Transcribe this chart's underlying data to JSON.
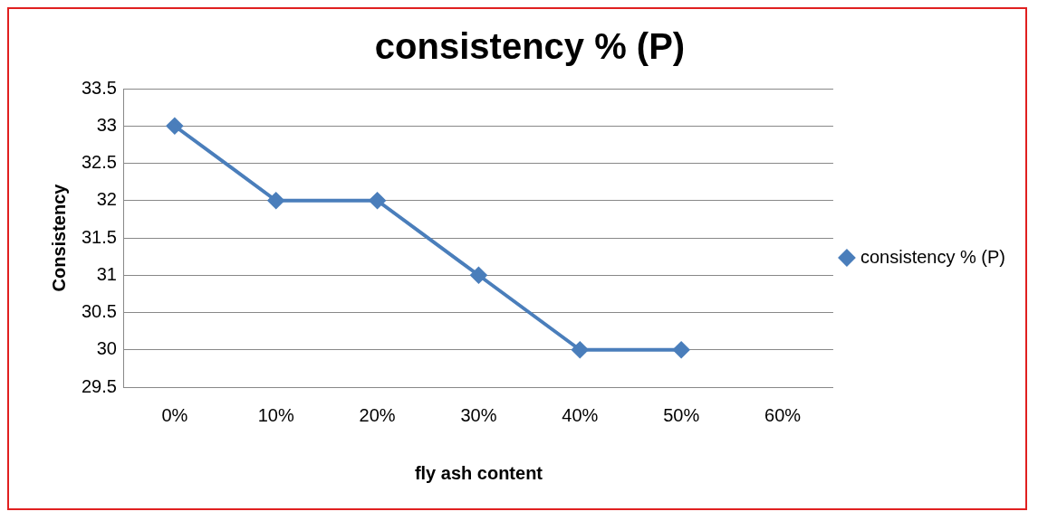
{
  "chart_data": {
    "type": "line",
    "title": "consistency % (P)",
    "xlabel": "fly ash content",
    "ylabel": "Consistency",
    "categories": [
      "0%",
      "10%",
      "20%",
      "30%",
      "40%",
      "50%",
      "60%"
    ],
    "series": [
      {
        "name": "consistency % (P)",
        "color": "#4a7ebb",
        "values": [
          33,
          32,
          32,
          31,
          30,
          30,
          null
        ]
      }
    ],
    "ylim": [
      29.5,
      33.5
    ],
    "yticks": [
      29.5,
      30,
      30.5,
      31,
      31.5,
      32,
      32.5,
      33,
      33.5
    ],
    "grid": "y",
    "legend": "right",
    "marker": "diamond",
    "line_style": "solid"
  }
}
